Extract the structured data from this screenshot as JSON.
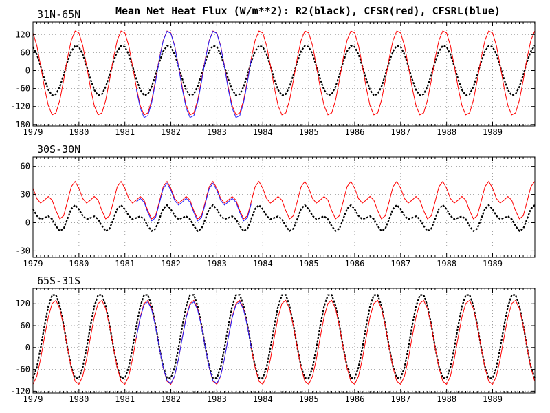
{
  "title": "Mean Net Heat Flux (W/m**2): R2(black), CFSR(red), CFSRL(blue)",
  "colors": {
    "R2": "#000000",
    "CFSR": "#ff0000",
    "CFSRL": "#2222ff"
  },
  "chart_data": [
    {
      "type": "line",
      "region": "31N-65N",
      "title": "31N-65N",
      "xlim": [
        1979.0,
        1989.92
      ],
      "ylim": [
        -185,
        162
      ],
      "yticks": [
        -180,
        -120,
        -60,
        0,
        60,
        120
      ],
      "xticks": [
        "1979",
        "1980",
        "1981",
        "1982",
        "1983",
        "1984",
        "1985",
        "1986",
        "1987",
        "1988",
        "1989"
      ],
      "grid": true,
      "series": [
        {
          "key": "R2",
          "color": "#000000",
          "dash": "3,2",
          "width": 2.2,
          "years": [
            1979.0,
            1989.92
          ],
          "amp": 84,
          "mean": 0,
          "phase": 1.92
        },
        {
          "key": "CFSR",
          "color": "#ff0000",
          "dash": "",
          "width": 1,
          "years": [
            1979.0,
            1989.92
          ],
          "amp": 142,
          "mean": -8,
          "phase": 1.92
        },
        {
          "key": "CFSRL",
          "color": "#2222ff",
          "dash": "",
          "width": 1,
          "years": [
            1981.25,
            1983.75
          ],
          "amp": 146,
          "mean": -13,
          "phase": 1.92
        }
      ]
    },
    {
      "type": "line",
      "region": "30S-30N",
      "title": "30S-30N",
      "xlim": [
        1979.0,
        1989.92
      ],
      "ylim": [
        -37,
        70
      ],
      "yticks": [
        -30,
        0,
        30,
        60
      ],
      "xticks": [
        "1979",
        "1980",
        "1981",
        "1982",
        "1983",
        "1984",
        "1985",
        "1986",
        "1987",
        "1988",
        "1989"
      ],
      "grid": true,
      "series": [
        {
          "key": "R2",
          "color": "#000000",
          "dash": "3,2",
          "width": 2.2,
          "years": [
            1979.0,
            1989.92
          ],
          "amp": 9,
          "mean": 5,
          "phase": 1.5,
          "semi": 7
        },
        {
          "key": "CFSR",
          "color": "#ff0000",
          "dash": "",
          "width": 1,
          "years": [
            1979.0,
            1989.92
          ],
          "amp": 12,
          "mean": 24,
          "phase": 1.5,
          "semi": 11
        },
        {
          "key": "CFSRL",
          "color": "#2222ff",
          "dash": "",
          "width": 1,
          "years": [
            1981.25,
            1983.75
          ],
          "amp": 12,
          "mean": 22,
          "phase": 1.5,
          "semi": 11
        }
      ]
    },
    {
      "type": "line",
      "region": "65S-31S",
      "title": "65S-31S",
      "xlim": [
        1979.0,
        1989.92
      ],
      "ylim": [
        -125,
        162
      ],
      "yticks": [
        -120,
        -60,
        0,
        60,
        120
      ],
      "xticks": [
        "1979",
        "1980",
        "1981",
        "1982",
        "1983",
        "1984",
        "1985",
        "1986",
        "1987",
        "1988",
        "1989"
      ],
      "grid": true,
      "series": [
        {
          "key": "R2",
          "color": "#000000",
          "dash": "3,2",
          "width": 2.2,
          "years": [
            1979.0,
            1989.92
          ],
          "amp": 118,
          "mean": 30,
          "phase": -1.32
        },
        {
          "key": "CFSR",
          "color": "#ff0000",
          "dash": "",
          "width": 1,
          "years": [
            1979.0,
            1989.92
          ],
          "amp": 116,
          "mean": 14,
          "phase": -1.45
        },
        {
          "key": "CFSRL",
          "color": "#2222ff",
          "dash": "",
          "width": 1,
          "years": [
            1981.25,
            1983.75
          ],
          "amp": 113,
          "mean": 13,
          "phase": -1.45
        }
      ]
    }
  ]
}
